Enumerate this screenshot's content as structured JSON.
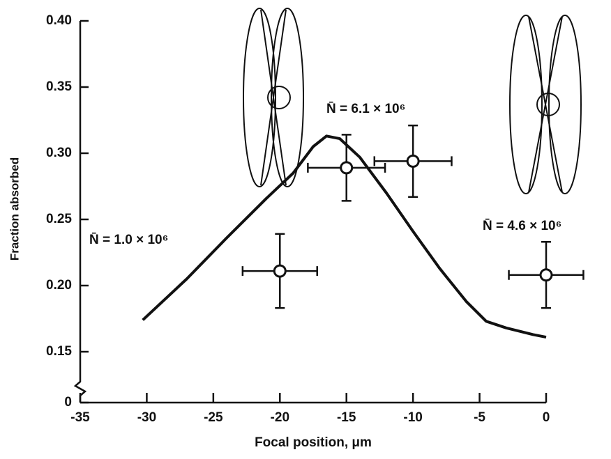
{
  "chart_data": {
    "type": "scatter",
    "x_label": "Focal position, μm",
    "y_label": "Fraction absorbed",
    "xlim": [
      -35,
      0
    ],
    "xticks": [
      -35,
      -30,
      -25,
      -20,
      -15,
      -10,
      -5,
      0
    ],
    "ylim": [
      0,
      0.4
    ],
    "ybreak": [
      0,
      0.15
    ],
    "yticks": [
      0,
      0.15,
      {
        "value": 0.2,
        "label": "0.20"
      },
      0.25,
      {
        "value": 0.3,
        "label": "0.30"
      },
      0.35,
      {
        "value": 0.4,
        "label": "0.40"
      }
    ],
    "annotations": [
      "N̄ = 1.0 × 10⁶",
      "N̄ = 6.1 × 10⁶",
      "N̄ = 4.6 × 10⁶"
    ],
    "series": [
      {
        "type": "line",
        "color": "#111111",
        "x": [
          -30.3,
          -27,
          -24,
          -21,
          -19,
          -17.5,
          -16.5,
          -15.5,
          -14,
          -12,
          -10,
          -8,
          -6,
          -4.5,
          -3,
          -1,
          0
        ],
        "values": [
          0.174,
          0.205,
          0.236,
          0.266,
          0.285,
          0.305,
          0.313,
          0.311,
          0.297,
          0.27,
          0.241,
          0.213,
          0.188,
          0.173,
          0.168,
          0.163,
          0.161
        ]
      },
      {
        "type": "scatter",
        "color": "#111111",
        "x": [
          -20,
          -15,
          -10,
          0
        ],
        "values": [
          0.211,
          0.289,
          0.294,
          0.208
        ],
        "xerr": [
          2.8,
          2.9,
          2.9,
          2.8
        ],
        "yerr": [
          0.028,
          0.025,
          0.027,
          0.025
        ]
      }
    ]
  }
}
